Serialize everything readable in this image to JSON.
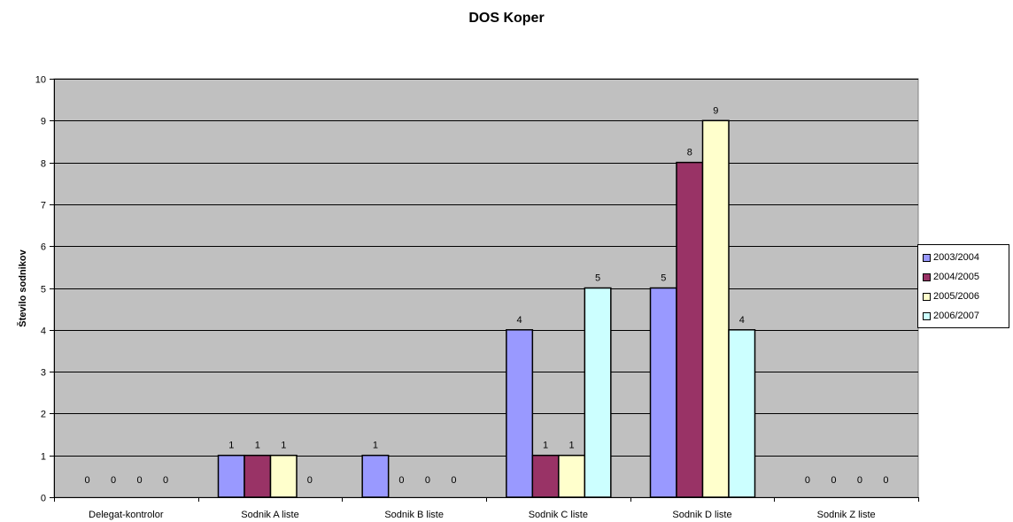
{
  "chart_data": {
    "type": "bar",
    "title": "DOS Koper",
    "xlabel": "",
    "ylabel": "Število sodnikov",
    "ylim": [
      0,
      10
    ],
    "yticks": [
      0,
      1,
      2,
      3,
      4,
      5,
      6,
      7,
      8,
      9,
      10
    ],
    "grid": true,
    "legend_position": "right",
    "categories": [
      "Delegat-kontrolor",
      "Sodnik A liste",
      "Sodnik B liste",
      "Sodnik C liste",
      "Sodnik D liste",
      "Sodnik Z liste"
    ],
    "series": [
      {
        "name": "2003/2004",
        "values": [
          0,
          1,
          1,
          4,
          5,
          0
        ],
        "color": "#9999ff"
      },
      {
        "name": "2004/2005",
        "values": [
          0,
          1,
          0,
          1,
          8,
          0
        ],
        "color": "#993366"
      },
      {
        "name": "2005/2006",
        "values": [
          0,
          1,
          0,
          1,
          9,
          0
        ],
        "color": "#ffffcc"
      },
      {
        "name": "2006/2007",
        "values": [
          0,
          0,
          0,
          5,
          4,
          0
        ],
        "color": "#ccffff"
      }
    ],
    "plot_background": "#c0c0c0"
  }
}
